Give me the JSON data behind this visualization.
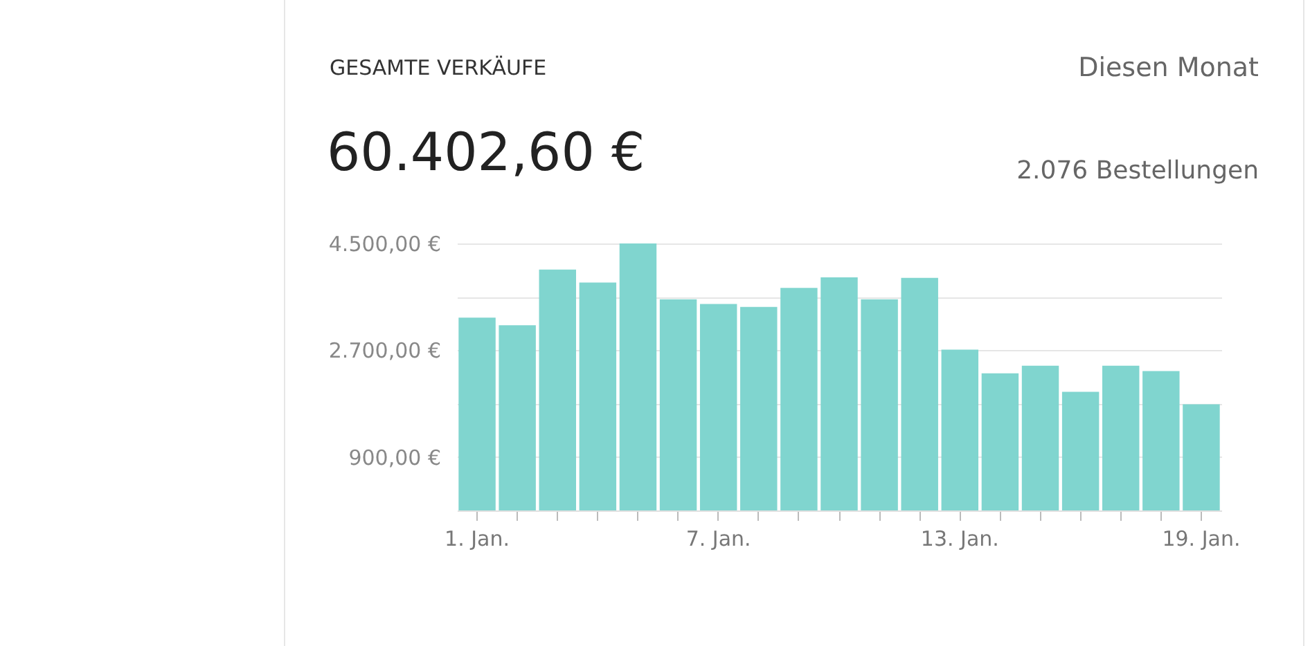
{
  "chart_data": {
    "type": "bar",
    "title": "GESAMTE VERKÄUFE",
    "subtitle": "60.402,60 €",
    "annotations": [
      "Diesen Monat",
      "2.076 Bestellungen"
    ],
    "categories": [
      "1. Jan.",
      null,
      null,
      null,
      null,
      null,
      "7. Jan.",
      null,
      null,
      null,
      null,
      null,
      "13. Jan.",
      null,
      null,
      null,
      null,
      null,
      "19. Jan."
    ],
    "values": [
      3250,
      3120,
      4060,
      3840,
      4500,
      3560,
      3480,
      3430,
      3750,
      3930,
      3560,
      3920,
      2710,
      2310,
      2440,
      2000,
      2440,
      2350,
      1790
    ],
    "color": "#80d5cf",
    "ylim": [
      0,
      4500
    ],
    "yticks": [
      {
        "value": 900,
        "label": "900,00 €"
      },
      {
        "value": 1800,
        "label": null
      },
      {
        "value": 2700,
        "label": "2.700,00 €"
      },
      {
        "value": 3600,
        "label": null
      },
      {
        "value": 4500,
        "label": "4.500,00 €"
      }
    ],
    "grid": "y"
  }
}
